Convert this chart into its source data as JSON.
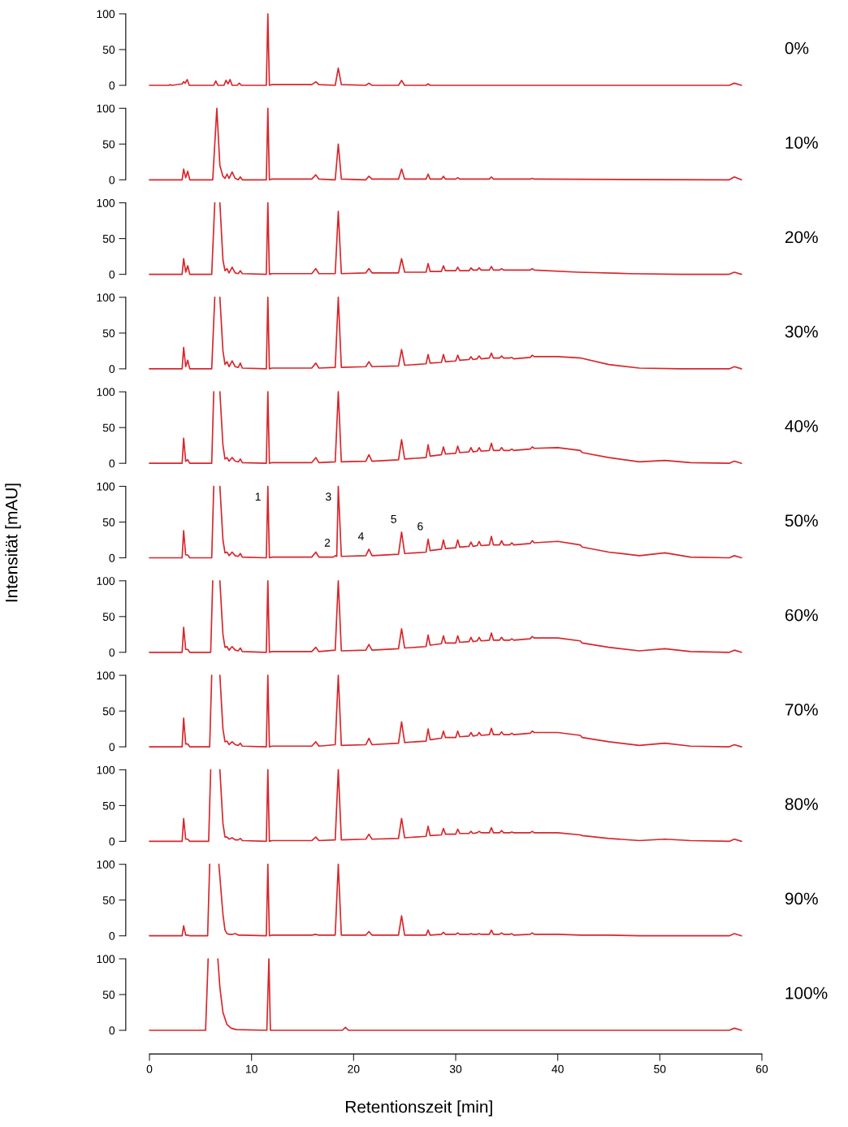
{
  "chart_data": [
    {
      "type": "line",
      "xlim": [
        0,
        60
      ],
      "ylim": [
        0,
        100
      ],
      "yticks": [
        0,
        50,
        100
      ],
      "tick_labels": "y",
      "series": [
        {
          "name": "0%",
          "color": "#d7262b",
          "x": [
            0,
            1.9,
            2.0,
            2.2,
            3.2,
            3.35,
            3.5,
            3.7,
            3.9,
            6.3,
            6.5,
            6.7,
            7.3,
            7.5,
            7.7,
            7.9,
            8.1,
            8.6,
            8.8,
            9.0,
            11.45,
            11.6,
            11.75,
            12.0,
            15.9,
            16.3,
            16.6,
            18.2,
            18.5,
            18.8,
            21.2,
            21.5,
            21.8,
            24.4,
            24.7,
            25.0,
            27.1,
            27.3,
            27.5,
            56.8,
            57.3,
            58
          ],
          "values": [
            0,
            0,
            1,
            0,
            2,
            5,
            3,
            8,
            0,
            0,
            6,
            0,
            0,
            7,
            2,
            8,
            0,
            0,
            3,
            0,
            0,
            100,
            0,
            1,
            1,
            5,
            1,
            0,
            24,
            1,
            0,
            3,
            0,
            0,
            7,
            0,
            0,
            2,
            0,
            0,
            3,
            0
          ]
        }
      ]
    },
    {
      "type": "line",
      "xlim": [
        0,
        60
      ],
      "ylim": [
        0,
        100
      ],
      "yticks": [
        0,
        50,
        100
      ],
      "tick_labels": "y",
      "series": [
        {
          "name": "10%",
          "color": "#d7262b",
          "x": [
            0,
            3.2,
            3.35,
            3.55,
            3.75,
            3.95,
            6.2,
            6.6,
            6.9,
            7.2,
            7.4,
            7.6,
            7.8,
            8.1,
            8.4,
            8.7,
            8.9,
            9.1,
            11.45,
            11.6,
            11.75,
            12.0,
            15.9,
            16.3,
            16.6,
            18.2,
            18.5,
            18.8,
            21.2,
            21.5,
            21.8,
            24.4,
            24.7,
            25.0,
            27.1,
            27.3,
            27.5,
            28.6,
            28.8,
            29.0,
            30.0,
            30.2,
            30.4,
            33.3,
            33.5,
            33.7,
            37.3,
            37.5,
            37.7,
            56.8,
            57.3,
            58
          ],
          "values": [
            0,
            0,
            15,
            3,
            12,
            0,
            0,
            100,
            20,
            5,
            2,
            8,
            2,
            11,
            2,
            0,
            4,
            0,
            0,
            100,
            0,
            1,
            1,
            7,
            1,
            0,
            50,
            1,
            0,
            5,
            1,
            1,
            15,
            1,
            1,
            8,
            1,
            1,
            5,
            1,
            1,
            3,
            1,
            1,
            4,
            1,
            1,
            2,
            1,
            0,
            4,
            0
          ]
        }
      ]
    },
    {
      "type": "line",
      "xlim": [
        0,
        60
      ],
      "ylim": [
        0,
        100
      ],
      "yticks": [
        0,
        50,
        100
      ],
      "tick_labels": "y",
      "series": [
        {
          "name": "20%",
          "color": "#d7262b",
          "x": [
            0,
            3.2,
            3.35,
            3.55,
            3.75,
            3.95,
            6.1,
            6.4,
            6.55,
            6.9,
            7.2,
            7.4,
            7.6,
            7.8,
            8.1,
            8.4,
            8.7,
            8.9,
            9.1,
            11.45,
            11.6,
            11.75,
            12.0,
            15.9,
            16.3,
            16.6,
            18.2,
            18.5,
            18.8,
            21.2,
            21.5,
            21.8,
            24.4,
            24.7,
            25.0,
            27.1,
            27.3,
            27.5,
            28.6,
            28.8,
            29.0,
            30.0,
            30.2,
            30.4,
            31.3,
            31.5,
            31.7,
            32.1,
            32.3,
            32.5,
            33.3,
            33.5,
            33.7,
            34.3,
            34.5,
            34.7,
            37.3,
            37.5,
            37.7,
            42,
            47,
            52,
            56.8,
            57.3,
            58
          ],
          "values": [
            0,
            0,
            22,
            3,
            12,
            0,
            0,
            100,
            null,
            100,
            20,
            5,
            8,
            2,
            10,
            2,
            1,
            5,
            1,
            0,
            100,
            0,
            1,
            1,
            8,
            1,
            1,
            88,
            1,
            2,
            8,
            2,
            2,
            22,
            3,
            3,
            15,
            4,
            4,
            12,
            5,
            5,
            10,
            5,
            5,
            9,
            6,
            6,
            9,
            6,
            6,
            11,
            6,
            6,
            8,
            6,
            6,
            8,
            6,
            3,
            1,
            0,
            0,
            3,
            0
          ]
        }
      ]
    },
    {
      "type": "line",
      "xlim": [
        0,
        60
      ],
      "ylim": [
        0,
        100
      ],
      "yticks": [
        0,
        50,
        100
      ],
      "tick_labels": "y",
      "series": [
        {
          "name": "30%",
          "color": "#d7262b",
          "x": [
            0,
            3.2,
            3.35,
            3.55,
            3.75,
            3.95,
            6.1,
            6.4,
            6.55,
            6.9,
            7.2,
            7.4,
            7.6,
            7.8,
            8.1,
            8.4,
            8.7,
            8.9,
            9.1,
            11.45,
            11.6,
            11.75,
            12.0,
            15.9,
            16.3,
            16.6,
            18.2,
            18.5,
            18.8,
            21.2,
            21.5,
            21.8,
            24.4,
            24.7,
            25.0,
            27.1,
            27.3,
            27.5,
            28.6,
            28.8,
            29.0,
            30.0,
            30.2,
            30.4,
            31.3,
            31.5,
            31.7,
            32.1,
            32.3,
            32.5,
            33.3,
            33.5,
            33.7,
            34.3,
            34.5,
            34.7,
            35.3,
            35.5,
            35.7,
            37.3,
            37.5,
            37.7,
            40,
            42.3,
            45,
            48,
            52,
            56.8,
            57.3,
            58
          ],
          "values": [
            0,
            0,
            30,
            3,
            12,
            0,
            0,
            100,
            null,
            100,
            25,
            6,
            10,
            3,
            11,
            3,
            2,
            8,
            1,
            0,
            100,
            0,
            1,
            1,
            8,
            1,
            2,
            100,
            2,
            3,
            10,
            3,
            4,
            27,
            5,
            7,
            20,
            8,
            9,
            20,
            10,
            11,
            19,
            12,
            13,
            17,
            13,
            14,
            18,
            14,
            15,
            22,
            15,
            15,
            18,
            15,
            15,
            16,
            14,
            16,
            19,
            17,
            17,
            15,
            6,
            1,
            0,
            0,
            3,
            0
          ]
        }
      ]
    },
    {
      "type": "line",
      "xlim": [
        0,
        60
      ],
      "ylim": [
        0,
        100
      ],
      "yticks": [
        0,
        50,
        100
      ],
      "tick_labels": "y",
      "series": [
        {
          "color": "#d7262b",
          "x": [
            0,
            3.2,
            3.35,
            3.55,
            3.75,
            3.95,
            6.1,
            6.3,
            6.6,
            6.9,
            7.2,
            7.4,
            7.6,
            7.8,
            8.1,
            8.4,
            8.7,
            8.9,
            9.1,
            11.45,
            11.6,
            11.75,
            12.0,
            15.9,
            16.3,
            16.6,
            18.2,
            18.5,
            18.8,
            21.2,
            21.5,
            21.8,
            24.4,
            24.7,
            25.0,
            27.1,
            27.3,
            27.5,
            28.6,
            28.8,
            29.0,
            30.0,
            30.2,
            30.4,
            31.3,
            31.5,
            31.7,
            32.1,
            32.3,
            32.5,
            33.3,
            33.5,
            33.7,
            34.3,
            34.5,
            34.7,
            35.3,
            35.5,
            35.7,
            37.3,
            37.5,
            37.7,
            40,
            42.2,
            42.4,
            45,
            48,
            50.5,
            53,
            56.8,
            57.3,
            58
          ],
          "name": "40%",
          "values": [
            0,
            0,
            35,
            3,
            5,
            0,
            0,
            100,
            null,
            100,
            25,
            6,
            8,
            3,
            8,
            3,
            2,
            6,
            1,
            0,
            100,
            0,
            1,
            1,
            8,
            1,
            2,
            100,
            2,
            3,
            12,
            3,
            5,
            33,
            6,
            8,
            26,
            10,
            12,
            23,
            13,
            14,
            24,
            15,
            16,
            22,
            16,
            17,
            22,
            17,
            18,
            28,
            18,
            18,
            22,
            18,
            18,
            20,
            18,
            20,
            23,
            21,
            22,
            18,
            15,
            8,
            2,
            4,
            1,
            0,
            3,
            0
          ]
        }
      ]
    },
    {
      "type": "line",
      "ylabel": "Intensität [mAU]",
      "xlim": [
        0,
        60
      ],
      "ylim": [
        0,
        100
      ],
      "yticks": [
        0,
        50,
        100
      ],
      "tick_labels": "y",
      "annotations": [
        {
          "text": "1",
          "x": 11.6,
          "y": 100
        },
        {
          "text": "2",
          "x": 18.2,
          "y": 3
        },
        {
          "text": "3",
          "x": 18.5,
          "y": 100
        },
        {
          "text": "4",
          "x": 21.5,
          "y": 12
        },
        {
          "text": "5",
          "x": 24.7,
          "y": 36
        },
        {
          "text": "6",
          "x": 27.3,
          "y": 26
        }
      ],
      "series": [
        {
          "color": "#d7262b",
          "x": [
            0,
            3.2,
            3.35,
            3.55,
            3.75,
            3.95,
            6.1,
            6.3,
            6.6,
            6.9,
            7.2,
            7.4,
            7.6,
            7.8,
            8.1,
            8.4,
            8.7,
            8.9,
            9.1,
            11.45,
            11.6,
            11.75,
            12.0,
            15.9,
            16.3,
            16.6,
            18.0,
            18.2,
            18.35,
            18.5,
            18.8,
            21.2,
            21.5,
            21.8,
            24.4,
            24.7,
            25.0,
            27.1,
            27.3,
            27.5,
            28.6,
            28.8,
            29.0,
            30.0,
            30.2,
            30.4,
            31.3,
            31.5,
            31.7,
            32.1,
            32.3,
            32.5,
            33.3,
            33.5,
            33.7,
            34.3,
            34.5,
            34.7,
            35.3,
            35.5,
            35.7,
            37.3,
            37.5,
            37.7,
            40,
            42.2,
            42.4,
            45,
            48,
            50.5,
            53,
            56.8,
            57.3,
            58
          ],
          "name": "50%",
          "values": [
            0,
            0,
            38,
            4,
            4,
            0,
            0,
            100,
            null,
            100,
            25,
            7,
            8,
            3,
            8,
            3,
            2,
            6,
            1,
            0,
            100,
            0,
            1,
            1,
            8,
            1,
            1,
            3,
            2,
            100,
            2,
            3,
            12,
            3,
            5,
            36,
            6,
            8,
            26,
            10,
            12,
            25,
            13,
            14,
            25,
            15,
            16,
            22,
            16,
            17,
            23,
            17,
            18,
            30,
            18,
            18,
            24,
            18,
            18,
            21,
            18,
            20,
            24,
            21,
            23,
            18,
            15,
            8,
            3,
            7,
            1,
            0,
            3,
            0
          ]
        }
      ]
    },
    {
      "type": "line",
      "xlim": [
        0,
        60
      ],
      "ylim": [
        0,
        100
      ],
      "yticks": [
        0,
        50,
        100
      ],
      "tick_labels": "y",
      "series": [
        {
          "color": "#d7262b",
          "x": [
            0,
            3.2,
            3.35,
            3.55,
            3.75,
            3.95,
            6.0,
            6.2,
            6.6,
            6.9,
            7.2,
            7.4,
            7.6,
            7.8,
            8.1,
            8.4,
            8.7,
            8.9,
            9.1,
            11.45,
            11.6,
            11.75,
            12.0,
            15.9,
            16.3,
            16.6,
            18.2,
            18.5,
            18.8,
            21.2,
            21.5,
            21.8,
            24.4,
            24.7,
            25.0,
            27.1,
            27.3,
            27.5,
            28.6,
            28.8,
            29.0,
            30.0,
            30.2,
            30.4,
            31.3,
            31.5,
            31.7,
            32.1,
            32.3,
            32.5,
            33.3,
            33.5,
            33.7,
            34.3,
            34.5,
            34.7,
            35.3,
            35.5,
            35.7,
            37.3,
            37.5,
            37.7,
            40,
            42.2,
            42.4,
            45,
            48,
            50.5,
            53,
            56.8,
            57.3,
            58
          ],
          "name": "60%",
          "values": [
            0,
            0,
            35,
            4,
            4,
            0,
            0,
            100,
            null,
            100,
            25,
            7,
            8,
            3,
            8,
            3,
            2,
            6,
            1,
            0,
            100,
            0,
            1,
            1,
            7,
            1,
            3,
            100,
            2,
            3,
            11,
            3,
            5,
            33,
            6,
            8,
            24,
            10,
            12,
            23,
            13,
            13,
            23,
            14,
            15,
            21,
            15,
            16,
            21,
            16,
            17,
            27,
            17,
            17,
            21,
            17,
            17,
            19,
            17,
            19,
            22,
            20,
            20,
            16,
            13,
            7,
            2,
            5,
            1,
            0,
            3,
            0
          ]
        }
      ]
    },
    {
      "type": "line",
      "xlim": [
        0,
        60
      ],
      "ylim": [
        0,
        100
      ],
      "yticks": [
        0,
        50,
        100
      ],
      "tick_labels": "y",
      "series": [
        {
          "color": "#d7262b",
          "x": [
            0,
            3.2,
            3.35,
            3.55,
            3.75,
            3.95,
            5.9,
            6.1,
            6.6,
            6.9,
            7.2,
            7.4,
            7.6,
            7.8,
            8.1,
            8.4,
            8.7,
            8.9,
            9.1,
            11.45,
            11.6,
            11.75,
            12.0,
            15.9,
            16.3,
            16.6,
            18.2,
            18.5,
            18.8,
            21.2,
            21.5,
            21.8,
            24.4,
            24.7,
            25.0,
            27.1,
            27.3,
            27.5,
            28.6,
            28.8,
            29.0,
            30.0,
            30.2,
            30.4,
            31.3,
            31.5,
            31.7,
            32.1,
            32.3,
            32.5,
            33.3,
            33.5,
            33.7,
            34.3,
            34.5,
            34.7,
            35.3,
            35.5,
            35.7,
            37.3,
            37.5,
            37.7,
            40,
            42.2,
            42.4,
            45,
            48,
            50.5,
            53,
            56.8,
            57.3,
            58
          ],
          "name": "70%",
          "values": [
            0,
            0,
            40,
            4,
            4,
            0,
            0,
            100,
            null,
            100,
            25,
            7,
            8,
            3,
            7,
            3,
            2,
            5,
            1,
            0,
            100,
            0,
            1,
            1,
            7,
            1,
            3,
            100,
            2,
            3,
            12,
            3,
            5,
            35,
            6,
            8,
            25,
            10,
            12,
            22,
            13,
            13,
            22,
            14,
            15,
            20,
            15,
            16,
            20,
            16,
            17,
            26,
            17,
            17,
            21,
            17,
            17,
            19,
            17,
            19,
            22,
            20,
            20,
            16,
            13,
            7,
            2,
            5,
            1,
            0,
            3,
            0
          ]
        }
      ]
    },
    {
      "type": "line",
      "xlim": [
        0,
        60
      ],
      "ylim": [
        0,
        100
      ],
      "yticks": [
        0,
        50,
        100
      ],
      "tick_labels": "y",
      "series": [
        {
          "color": "#d7262b",
          "x": [
            0,
            3.2,
            3.35,
            3.55,
            3.75,
            3.95,
            5.8,
            6.0,
            6.6,
            6.9,
            7.2,
            7.4,
            7.6,
            7.8,
            8.1,
            8.4,
            8.7,
            8.9,
            9.1,
            11.45,
            11.6,
            11.75,
            12.0,
            15.9,
            16.3,
            16.6,
            18.2,
            18.5,
            18.8,
            21.2,
            21.5,
            21.8,
            24.4,
            24.7,
            25.0,
            27.1,
            27.3,
            27.5,
            28.6,
            28.8,
            29.0,
            30.0,
            30.2,
            30.4,
            31.3,
            31.5,
            31.7,
            32.1,
            32.3,
            32.5,
            33.3,
            33.5,
            33.7,
            34.3,
            34.5,
            34.7,
            35.3,
            35.5,
            35.7,
            37.3,
            37.5,
            37.7,
            40,
            42.2,
            42.4,
            45,
            48,
            50.5,
            53,
            56.8,
            57.3,
            58
          ],
          "name": "80%",
          "values": [
            0,
            0,
            32,
            3,
            3,
            0,
            0,
            100,
            null,
            100,
            25,
            6,
            6,
            3,
            5,
            2,
            2,
            4,
            1,
            0,
            100,
            0,
            1,
            1,
            6,
            1,
            2,
            100,
            2,
            3,
            10,
            3,
            4,
            32,
            5,
            7,
            21,
            8,
            9,
            18,
            10,
            10,
            17,
            11,
            11,
            14,
            11,
            12,
            14,
            12,
            12,
            19,
            12,
            12,
            15,
            12,
            12,
            13,
            12,
            12,
            14,
            12,
            12,
            9,
            8,
            4,
            1,
            3,
            1,
            0,
            3,
            0
          ]
        }
      ]
    },
    {
      "type": "line",
      "xlim": [
        0,
        60
      ],
      "ylim": [
        0,
        100
      ],
      "yticks": [
        0,
        50,
        100
      ],
      "tick_labels": "y",
      "series": [
        {
          "color": "#d7262b",
          "x": [
            0,
            3.2,
            3.35,
            3.55,
            3.75,
            3.95,
            5.7,
            5.9,
            6.4,
            6.8,
            7.2,
            7.4,
            7.6,
            7.8,
            8.1,
            8.4,
            8.7,
            8.9,
            9.1,
            11.45,
            11.6,
            11.75,
            12.0,
            15.9,
            16.3,
            16.6,
            18.2,
            18.5,
            18.8,
            21.2,
            21.5,
            21.8,
            24.4,
            24.7,
            25.0,
            27.1,
            27.3,
            27.5,
            28.6,
            28.8,
            29.0,
            30.0,
            30.2,
            30.4,
            31.3,
            31.5,
            31.7,
            32.1,
            32.3,
            32.5,
            33.3,
            33.5,
            33.7,
            34.3,
            34.5,
            34.7,
            35.3,
            35.5,
            35.7,
            37.3,
            37.5,
            37.7,
            40,
            42.3,
            45,
            48,
            52,
            56.8,
            57.3,
            58
          ],
          "name": "90%",
          "values": [
            0,
            0,
            14,
            1,
            1,
            0,
            0,
            100,
            null,
            100,
            30,
            8,
            3,
            2,
            2,
            3,
            1,
            1,
            1,
            0,
            100,
            0,
            1,
            1,
            2,
            1,
            1,
            100,
            1,
            1,
            6,
            1,
            1,
            28,
            1,
            1,
            8,
            1,
            2,
            5,
            2,
            2,
            4,
            2,
            2,
            3,
            2,
            2,
            3,
            2,
            2,
            8,
            2,
            2,
            4,
            2,
            2,
            3,
            1,
            2,
            4,
            2,
            2,
            1,
            1,
            0,
            0,
            0,
            3,
            0
          ]
        }
      ]
    },
    {
      "type": "line",
      "xlabel": "Retentionszeit [min]",
      "xlim": [
        0,
        60
      ],
      "ylim": [
        0,
        100
      ],
      "xticks": [
        0,
        10,
        20,
        30,
        40,
        50,
        60
      ],
      "yticks": [
        0,
        50,
        100
      ],
      "series": [
        {
          "color": "#d7262b",
          "x": [
            0,
            5.5,
            5.75,
            6.2,
            6.7,
            6.9,
            7.2,
            7.6,
            8.0,
            8.5,
            11.5,
            11.7,
            11.85,
            18.9,
            19.2,
            19.5,
            56.8,
            57.3,
            58
          ],
          "name": "100%",
          "values": [
            0,
            0,
            100,
            null,
            100,
            60,
            25,
            8,
            3,
            1,
            0,
            100,
            0,
            0,
            4,
            0,
            0,
            3,
            0
          ]
        }
      ]
    }
  ]
}
